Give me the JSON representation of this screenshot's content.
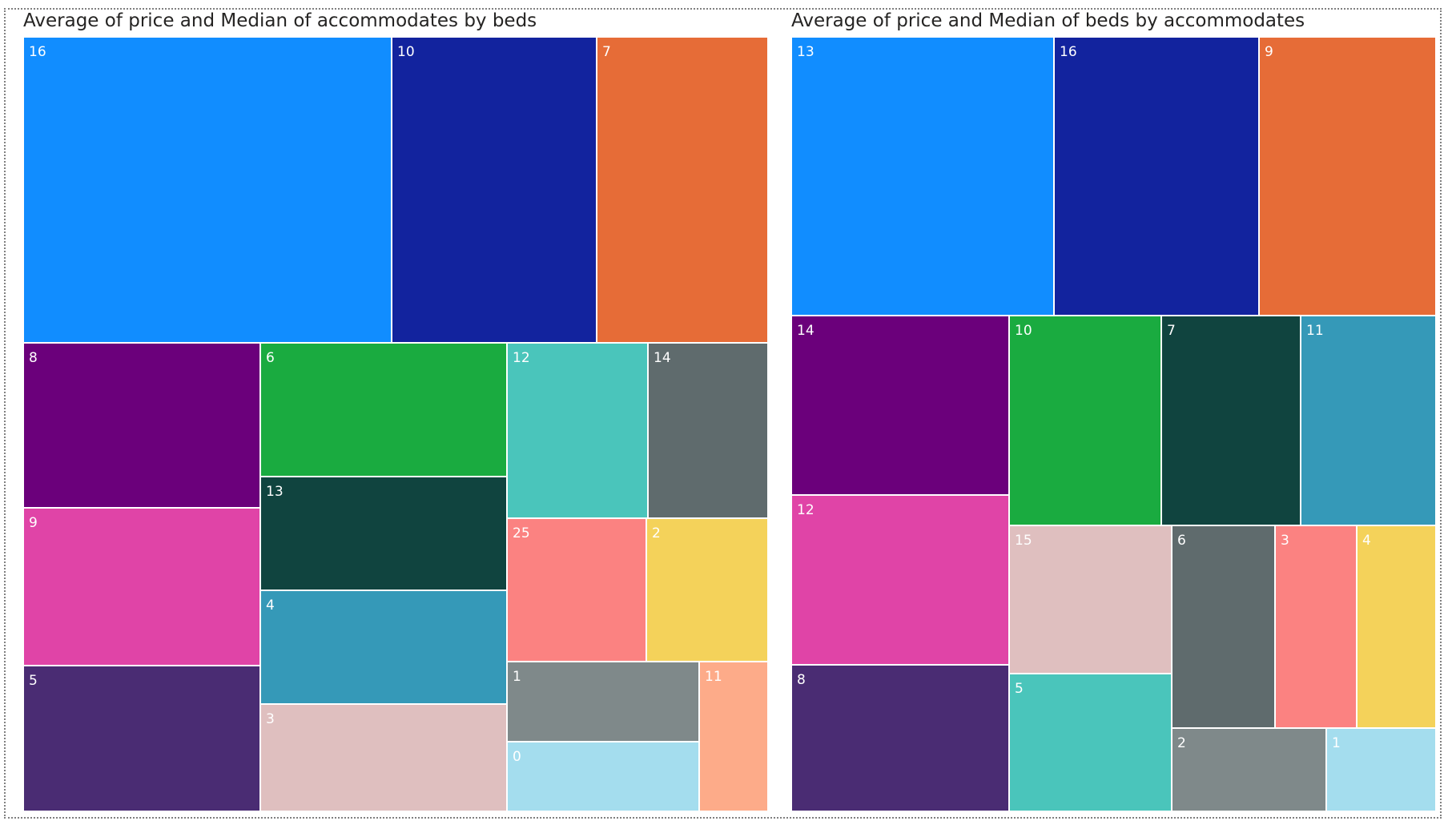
{
  "chart_data": [
    {
      "type": "treemap",
      "title": "Average of price and Median of accommodates by beds",
      "legend": "none",
      "nodes": [
        {
          "label": "16",
          "color": "#118DFF"
        },
        {
          "label": "10",
          "color": "#12239E"
        },
        {
          "label": "7",
          "color": "#E66C37"
        },
        {
          "label": "8",
          "color": "#6B007B"
        },
        {
          "label": "9",
          "color": "#E044A7"
        },
        {
          "label": "5",
          "color": "#4A2C73"
        },
        {
          "label": "6",
          "color": "#1AAB40"
        },
        {
          "label": "13",
          "color": "#10443F"
        },
        {
          "label": "4",
          "color": "#3599B8"
        },
        {
          "label": "3",
          "color": "#DFBFBF"
        },
        {
          "label": "12",
          "color": "#4AC5BB"
        },
        {
          "label": "14",
          "color": "#5F6B6D"
        },
        {
          "label": "25",
          "color": "#FB8281"
        },
        {
          "label": "2",
          "color": "#F4D25A"
        },
        {
          "label": "1",
          "color": "#7F898A"
        },
        {
          "label": "0",
          "color": "#A4DDEE"
        },
        {
          "label": "11",
          "color": "#FDAB89"
        }
      ]
    },
    {
      "type": "treemap",
      "title": "Average of price and Median of beds by accommodates",
      "legend": "none",
      "nodes": [
        {
          "label": "13",
          "color": "#118DFF"
        },
        {
          "label": "16",
          "color": "#12239E"
        },
        {
          "label": "9",
          "color": "#E66C37"
        },
        {
          "label": "14",
          "color": "#6B007B"
        },
        {
          "label": "12",
          "color": "#E044A7"
        },
        {
          "label": "8",
          "color": "#4A2C73"
        },
        {
          "label": "10",
          "color": "#1AAB40"
        },
        {
          "label": "7",
          "color": "#10443F"
        },
        {
          "label": "11",
          "color": "#3599B8"
        },
        {
          "label": "15",
          "color": "#DFBFBF"
        },
        {
          "label": "5",
          "color": "#4AC5BB"
        },
        {
          "label": "6",
          "color": "#5F6B6D"
        },
        {
          "label": "3",
          "color": "#FB8281"
        },
        {
          "label": "4",
          "color": "#F4D25A"
        },
        {
          "label": "2",
          "color": "#7F898A"
        },
        {
          "label": "1",
          "color": "#A4DDEE"
        }
      ]
    }
  ]
}
